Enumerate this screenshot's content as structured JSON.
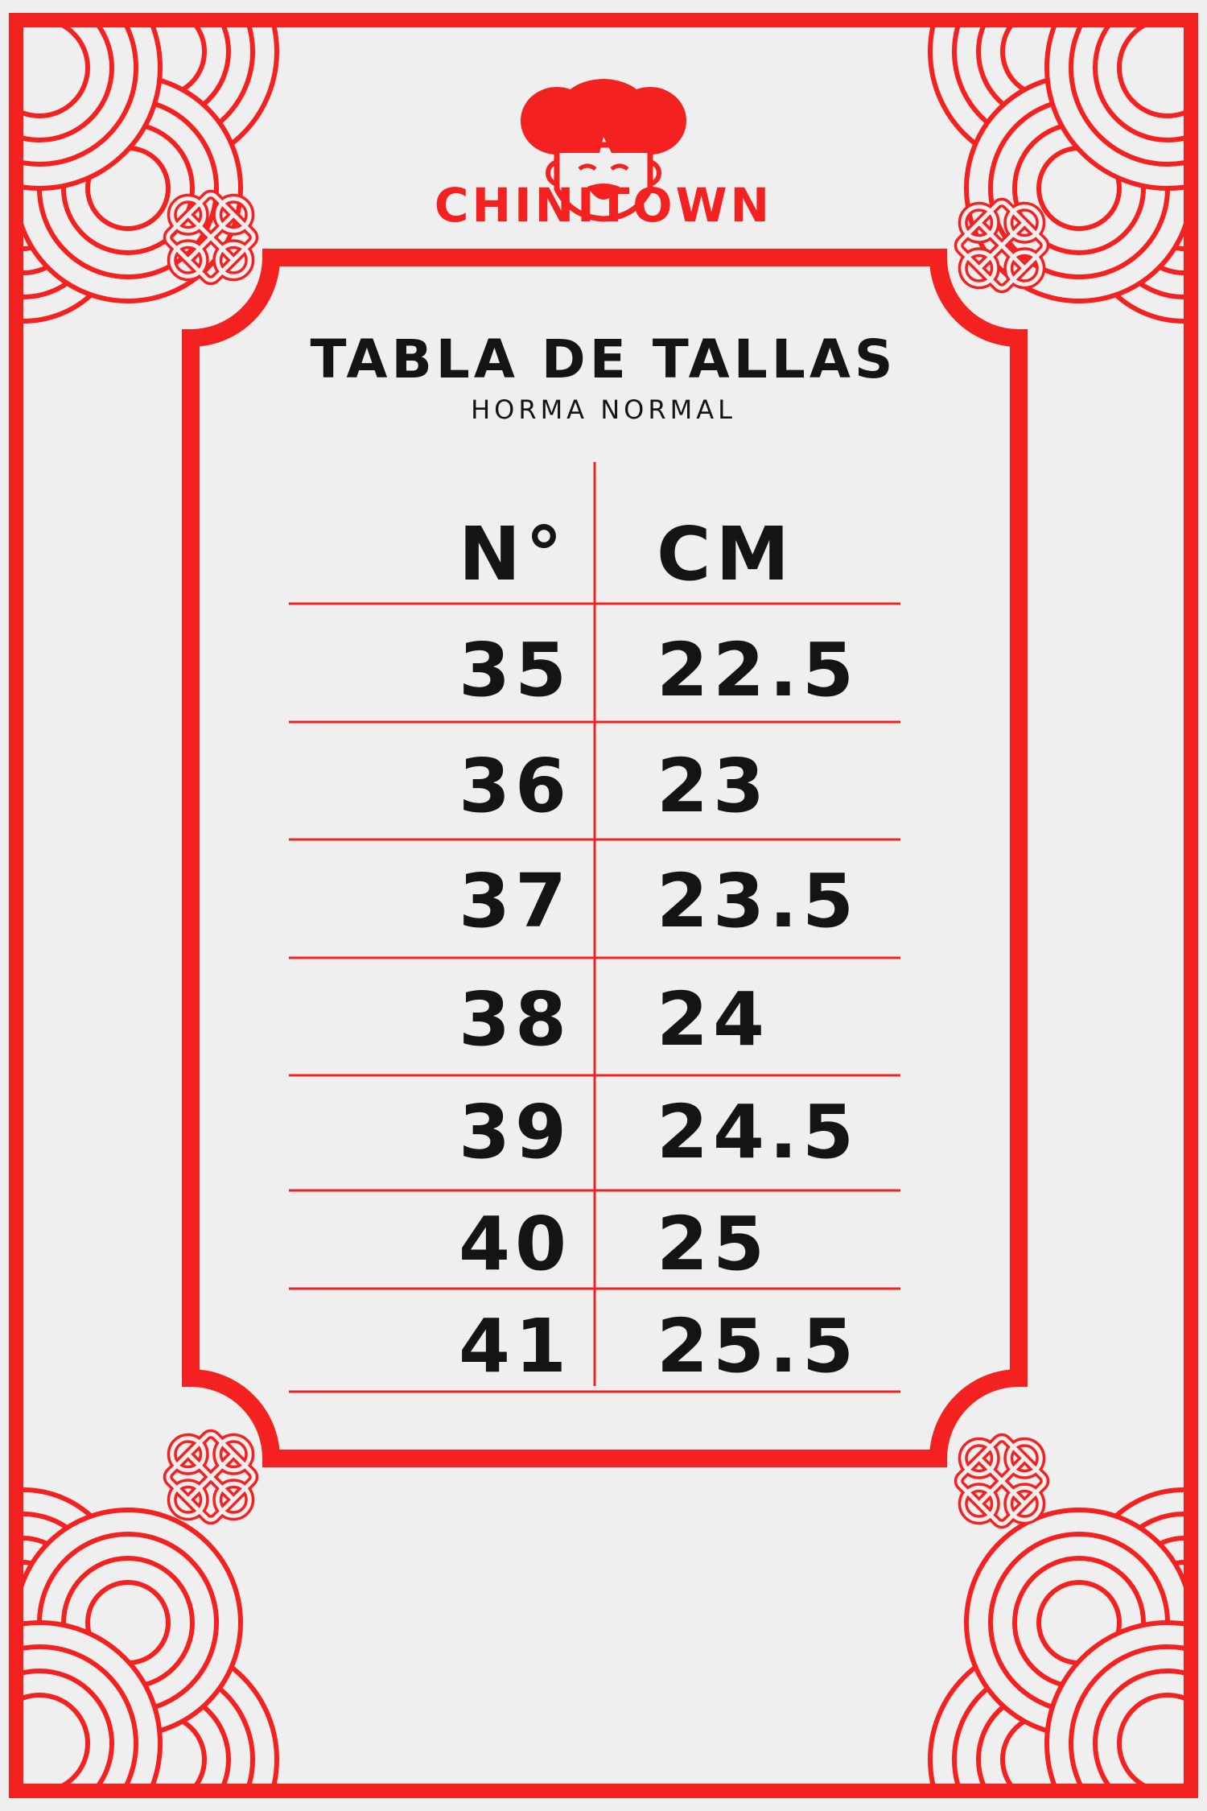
{
  "brand": {
    "name": "CHINITOWN",
    "logo_icon": "girl-face-logo"
  },
  "colors": {
    "accent": "#f42121",
    "background": "#efefef",
    "text": "#141414"
  },
  "title": "TABLA DE TALLAS",
  "subtitle": "HORMA NORMAL",
  "table": {
    "headers": [
      "N°",
      "CM"
    ],
    "rows": [
      [
        "35",
        "22.5"
      ],
      [
        "36",
        "23"
      ],
      [
        "37",
        "23.5"
      ],
      [
        "38",
        "24"
      ],
      [
        "39",
        "24.5"
      ],
      [
        "40",
        "25"
      ],
      [
        "41",
        "25.5"
      ]
    ]
  }
}
